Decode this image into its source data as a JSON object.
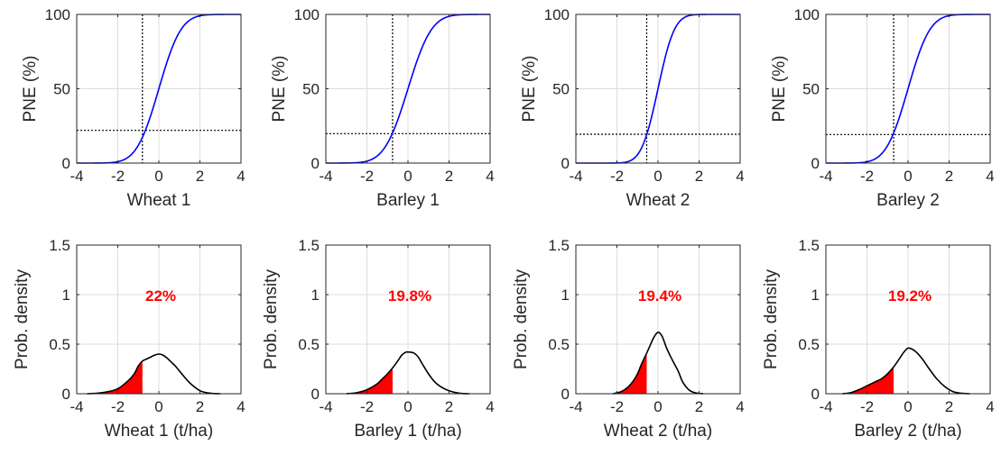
{
  "chart_data": [
    {
      "type": "line",
      "panel": "cdf",
      "crop": "Wheat 1",
      "xlabel": "Wheat 1",
      "ylabel": "PNE (%)",
      "xlim": [
        -4,
        4
      ],
      "ylim": [
        0,
        100
      ],
      "xticks": [
        "-4",
        "-2",
        "0",
        "2",
        "4"
      ],
      "yticks": [
        "0",
        "50",
        "100"
      ],
      "grid": true,
      "line_color": "#0000ff",
      "mean": 0.0,
      "sd": 0.85,
      "threshold_x": -0.8,
      "threshold_y": 22
    },
    {
      "type": "line",
      "panel": "cdf",
      "crop": "Barley 1",
      "xlabel": "Barley 1",
      "ylabel": "PNE (%)",
      "xlim": [
        -4,
        4
      ],
      "ylim": [
        0,
        100
      ],
      "xticks": [
        "-4",
        "-2",
        "0",
        "2",
        "4"
      ],
      "yticks": [
        "0",
        "50",
        "100"
      ],
      "grid": true,
      "line_color": "#0000ff",
      "mean": 0.0,
      "sd": 0.9,
      "threshold_x": -0.75,
      "threshold_y": 19.8
    },
    {
      "type": "line",
      "panel": "cdf",
      "crop": "Wheat 2",
      "xlabel": "Wheat 2",
      "ylabel": "PNE (%)",
      "xlim": [
        -4,
        4
      ],
      "ylim": [
        0,
        100
      ],
      "xticks": [
        "-4",
        "-2",
        "0",
        "2",
        "4"
      ],
      "yticks": [
        "0",
        "50",
        "100"
      ],
      "grid": true,
      "line_color": "#0000ff",
      "mean": 0.0,
      "sd": 0.63,
      "threshold_x": -0.55,
      "threshold_y": 19.4
    },
    {
      "type": "line",
      "panel": "cdf",
      "crop": "Barley 2",
      "xlabel": "Barley 2",
      "ylabel": "PNE (%)",
      "xlim": [
        -4,
        4
      ],
      "ylim": [
        0,
        100
      ],
      "xticks": [
        "-4",
        "-2",
        "0",
        "2",
        "4"
      ],
      "yticks": [
        "0",
        "50",
        "100"
      ],
      "grid": true,
      "line_color": "#0000ff",
      "mean": 0.0,
      "sd": 0.84,
      "threshold_x": -0.7,
      "threshold_y": 19.2
    },
    {
      "type": "area",
      "panel": "pdf",
      "crop": "Wheat 1",
      "xlabel": "Wheat 1 (t/ha)",
      "ylabel": "Prob. density",
      "xlim": [
        -4,
        4
      ],
      "ylim": [
        0,
        1.5
      ],
      "xticks": [
        "-4",
        "-2",
        "0",
        "2",
        "4"
      ],
      "yticks": [
        "0",
        "0.5",
        "1",
        "1.5"
      ],
      "grid": true,
      "line_color": "#000000",
      "fill_color": "#ff0000",
      "annotation": "22%",
      "shade_upper": -0.8,
      "x": [
        -3.5,
        -3.0,
        -2.5,
        -2.0,
        -1.5,
        -1.2,
        -1.0,
        -0.8,
        -0.6,
        -0.4,
        -0.2,
        0.0,
        0.2,
        0.4,
        0.6,
        0.8,
        1.0,
        1.2,
        1.5,
        2.0,
        2.5,
        3.0
      ],
      "y": [
        0.0,
        0.005,
        0.02,
        0.05,
        0.13,
        0.2,
        0.28,
        0.33,
        0.35,
        0.37,
        0.39,
        0.4,
        0.39,
        0.36,
        0.32,
        0.28,
        0.23,
        0.18,
        0.11,
        0.03,
        0.005,
        0.0
      ]
    },
    {
      "type": "area",
      "panel": "pdf",
      "crop": "Barley 1",
      "xlabel": "Barley 1 (t/ha)",
      "ylabel": "Prob. density",
      "xlim": [
        -4,
        4
      ],
      "ylim": [
        0,
        1.5
      ],
      "xticks": [
        "-4",
        "-2",
        "0",
        "2",
        "4"
      ],
      "yticks": [
        "0",
        "0.5",
        "1",
        "1.5"
      ],
      "grid": true,
      "line_color": "#000000",
      "fill_color": "#ff0000",
      "annotation": "19.8%",
      "shade_upper": -0.75,
      "x": [
        -3.0,
        -2.5,
        -2.0,
        -1.5,
        -1.2,
        -1.0,
        -0.75,
        -0.5,
        -0.3,
        -0.1,
        0.0,
        0.1,
        0.3,
        0.5,
        0.7,
        1.0,
        1.3,
        1.6,
        2.0,
        2.5,
        3.0
      ],
      "y": [
        0.0,
        0.01,
        0.04,
        0.1,
        0.16,
        0.2,
        0.26,
        0.33,
        0.39,
        0.42,
        0.42,
        0.42,
        0.41,
        0.37,
        0.3,
        0.2,
        0.12,
        0.07,
        0.03,
        0.005,
        0.0
      ]
    },
    {
      "type": "area",
      "panel": "pdf",
      "crop": "Wheat 2",
      "xlabel": "Wheat 2 (t/ha)",
      "ylabel": "Prob. density",
      "xlim": [
        -4,
        4
      ],
      "ylim": [
        0,
        1.5
      ],
      "xticks": [
        "-4",
        "-2",
        "0",
        "2",
        "4"
      ],
      "yticks": [
        "0",
        "0.5",
        "1",
        "1.5"
      ],
      "grid": true,
      "line_color": "#000000",
      "fill_color": "#ff0000",
      "annotation": "19.4%",
      "shade_upper": -0.55,
      "x": [
        -2.2,
        -1.8,
        -1.5,
        -1.2,
        -1.0,
        -0.8,
        -0.55,
        -0.4,
        -0.2,
        0.0,
        0.2,
        0.4,
        0.6,
        0.8,
        1.0,
        1.2,
        1.5,
        1.8,
        2.2
      ],
      "y": [
        0.0,
        0.02,
        0.06,
        0.13,
        0.2,
        0.3,
        0.41,
        0.48,
        0.57,
        0.62,
        0.58,
        0.47,
        0.38,
        0.3,
        0.22,
        0.12,
        0.04,
        0.01,
        0.0
      ]
    },
    {
      "type": "area",
      "panel": "pdf",
      "crop": "Barley 2",
      "xlabel": "Barley 2 (t/ha)",
      "ylabel": "Prob. density",
      "xlim": [
        -4,
        4
      ],
      "ylim": [
        0,
        1.5
      ],
      "xticks": [
        "-4",
        "-2",
        "0",
        "2",
        "4"
      ],
      "yticks": [
        "0",
        "0.5",
        "1",
        "1.5"
      ],
      "grid": true,
      "line_color": "#000000",
      "fill_color": "#ff0000",
      "annotation": "19.2%",
      "shade_upper": -0.7,
      "x": [
        -3.2,
        -2.8,
        -2.4,
        -2.0,
        -1.6,
        -1.3,
        -1.0,
        -0.7,
        -0.4,
        -0.2,
        0.0,
        0.2,
        0.4,
        0.7,
        1.0,
        1.4,
        1.8,
        2.2,
        2.6,
        3.0
      ],
      "y": [
        0.0,
        0.01,
        0.04,
        0.08,
        0.12,
        0.15,
        0.2,
        0.27,
        0.36,
        0.42,
        0.46,
        0.45,
        0.42,
        0.35,
        0.26,
        0.15,
        0.07,
        0.02,
        0.005,
        0.0
      ]
    }
  ]
}
